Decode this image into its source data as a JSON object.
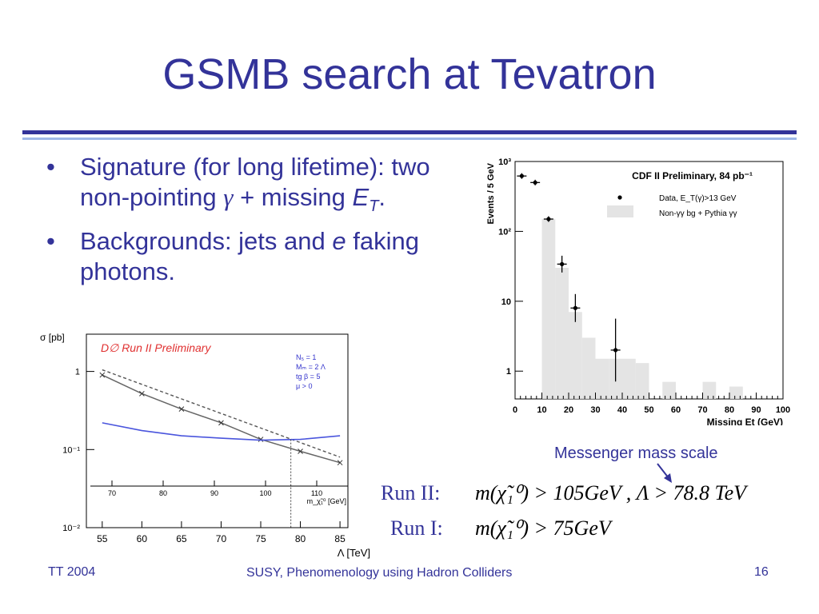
{
  "slide": {
    "title": "GSMB search at Tevatron",
    "bullets": [
      {
        "pre": "Signature (for long lifetime): two non-pointing ",
        "gamma": "γ",
        "plus": " + missing ",
        "e": "E",
        "sub": "T",
        "post": "."
      },
      {
        "pre": "Backgrounds: jets and ",
        "e": "e",
        "post": " faking photons."
      }
    ],
    "footer": {
      "left": "TT 2004",
      "center": "SUSY, Phenomenology using Hadron Colliders",
      "right": "16"
    },
    "messenger_label": "Messenger mass scale",
    "run2_label": "Run II:",
    "run1_label": "Run I:",
    "eq_run2": "m(χ̃₁⁰) > 105GeV , Λ > 78.8 TeV",
    "eq_run1": "m(χ̃₁⁰) > 75GeV"
  },
  "chart_data": [
    {
      "type": "scatter",
      "title": "CDF II Preliminary, 84 pb⁻¹",
      "xlabel": "Missing Et (GeV)",
      "ylabel": "Events / 5 GeV",
      "log_y": true,
      "xlim": [
        0,
        100
      ],
      "ylim": [
        0.4,
        1000
      ],
      "xticks": [
        "0",
        "10",
        "20",
        "30",
        "40",
        "50",
        "60",
        "70",
        "80",
        "90",
        "100"
      ],
      "yticks": [
        "1",
        "10",
        "10²",
        "10³"
      ],
      "legend": [
        {
          "marker": "point",
          "label": "Data, E_T(γ)>13 GeV"
        },
        {
          "marker": "box",
          "label": "Non-γγ bg + Pythia γγ"
        }
      ],
      "series": [
        {
          "name": "Data, E_T(γ)>13 GeV",
          "type": "scatter",
          "x": [
            2.5,
            7.5,
            12.5,
            17.5,
            22.5,
            37.5
          ],
          "y": [
            620,
            500,
            150,
            34,
            8,
            2
          ]
        },
        {
          "name": "Non-γγ bg + Pythia γγ",
          "type": "bar",
          "x": [
            12.5,
            17.5,
            22.5,
            27.5,
            32.5,
            37.5,
            42.5,
            47.5,
            57.5,
            72.5,
            82.5
          ],
          "y": [
            150,
            30,
            7,
            3,
            1.5,
            1.5,
            1.5,
            1.3,
            0.7,
            0.7,
            0.6
          ]
        }
      ]
    },
    {
      "type": "line",
      "title": "D∅ Run II Preliminary",
      "ylabel": "σ [pb]",
      "xlabel": "Λ [TeV]",
      "log_y": true,
      "xlim": [
        53,
        86
      ],
      "ylim": [
        0.01,
        3
      ],
      "xticks": [
        "55",
        "60",
        "65",
        "70",
        "75",
        "80",
        "85"
      ],
      "yticks": [
        "10⁻²",
        "10⁻¹",
        "1"
      ],
      "top_axis_label": "m_χ̃₁⁰ [GeV]",
      "top_xticks": [
        "70",
        "80",
        "90",
        "100",
        "110"
      ],
      "params": [
        "N₅ = 1",
        "Mₘ = 2 Λ",
        "tg β = 5",
        "μ > 0"
      ],
      "series": [
        {
          "name": "",
          "style": "gray-x",
          "x": [
            55,
            60,
            65,
            70,
            75,
            80,
            85
          ],
          "y": [
            0.9,
            0.52,
            0.33,
            0.22,
            0.135,
            0.095,
            0.068
          ]
        },
        {
          "name": "",
          "style": "dashed",
          "x": [
            55,
            85
          ],
          "y": [
            1.05,
            0.08
          ]
        },
        {
          "name": "",
          "style": "blue",
          "x": [
            55,
            60,
            65,
            70,
            75,
            80,
            85
          ],
          "y": [
            0.22,
            0.175,
            0.15,
            0.14,
            0.132,
            0.135,
            0.15
          ]
        }
      ]
    }
  ]
}
